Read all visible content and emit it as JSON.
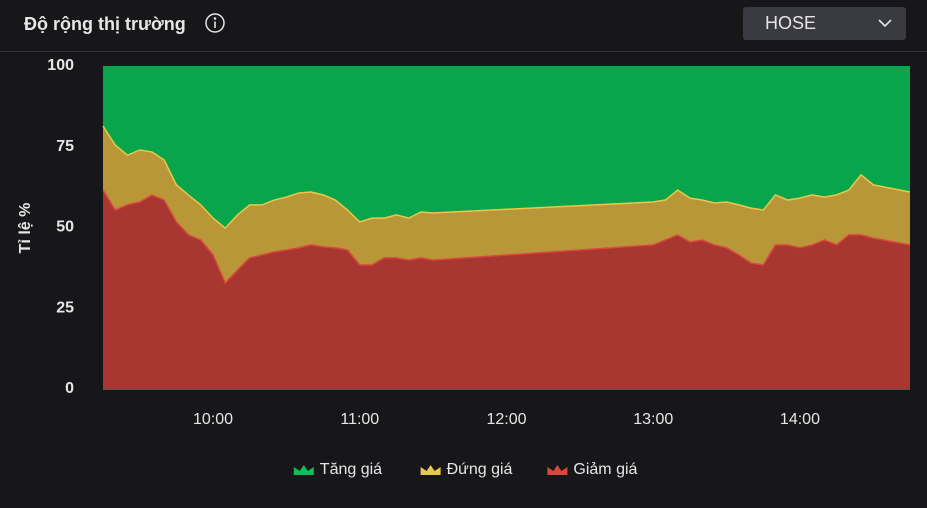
{
  "exchange_select": "HOSE",
  "chart_data": {
    "type": "stacked_area",
    "title": "Độ rộng thị trường",
    "y_label": "Tỉ lệ %",
    "x": [
      "09:15",
      "09:20",
      "09:25",
      "09:30",
      "09:35",
      "09:40",
      "09:45",
      "09:50",
      "09:55",
      "10:00",
      "10:05",
      "10:10",
      "10:15",
      "10:20",
      "10:25",
      "10:30",
      "10:35",
      "10:40",
      "10:45",
      "10:50",
      "10:55",
      "11:00",
      "11:05",
      "11:10",
      "11:15",
      "11:20",
      "11:25",
      "11:30",
      "13:00",
      "13:05",
      "13:10",
      "13:15",
      "13:20",
      "13:25",
      "13:30",
      "13:35",
      "13:40",
      "13:45",
      "13:50",
      "13:55",
      "14:00",
      "14:05",
      "14:10",
      "14:15",
      "14:20",
      "14:25",
      "14:30",
      "14:45"
    ],
    "series": [
      {
        "name": "Tăng giá",
        "color": "#08a54d",
        "line_color": "#0bbf5a",
        "values": [
          18.6,
          24.5,
          27.6,
          26.0,
          26.6,
          29.1,
          36.8,
          40.0,
          43.0,
          47.1,
          50.2,
          46.1,
          43.0,
          43.0,
          41.5,
          40.6,
          39.3,
          39.0,
          39.9,
          41.5,
          44.6,
          48.3,
          47.1,
          47.1,
          46.1,
          47.1,
          45.2,
          45.5,
          42.1,
          41.5,
          38.4,
          40.9,
          41.5,
          42.4,
          42.1,
          43.0,
          44.0,
          44.6,
          39.9,
          41.5,
          40.9,
          39.9,
          40.6,
          39.9,
          38.4,
          33.7,
          36.8,
          39.0
        ]
      },
      {
        "name": "Đứng giá",
        "color": "#b99638",
        "line_color": "#e8c94a",
        "values": [
          19.8,
          20.1,
          15.4,
          16.1,
          13.4,
          12.4,
          11.5,
          12.3,
          10.9,
          11.4,
          17.0,
          17.1,
          16.4,
          15.5,
          16.1,
          16.4,
          17.0,
          16.4,
          16.1,
          14.8,
          12.4,
          13.3,
          14.5,
          12.3,
          13.3,
          13.0,
          14.2,
          14.6,
          13.3,
          12.4,
          13.9,
          13.6,
          12.4,
          13.0,
          14.2,
          15.5,
          17.0,
          17.0,
          15.5,
          13.9,
          15.4,
          15.5,
          13.3,
          15.5,
          13.9,
          18.6,
          16.5,
          16.4
        ]
      },
      {
        "name": "Giảm giá",
        "color": "#a73730",
        "line_color": "#d9473e",
        "values": [
          61.6,
          55.4,
          57.0,
          57.9,
          60.0,
          58.5,
          51.7,
          47.7,
          46.1,
          41.5,
          32.8,
          36.8,
          40.6,
          41.5,
          42.4,
          43.0,
          43.7,
          44.6,
          44.0,
          43.7,
          43.0,
          38.4,
          38.4,
          40.6,
          40.6,
          39.9,
          40.6,
          39.9,
          44.6,
          46.1,
          47.7,
          45.5,
          46.1,
          44.6,
          43.7,
          41.5,
          39.0,
          38.4,
          44.6,
          44.6,
          43.7,
          44.6,
          46.1,
          44.6,
          47.7,
          47.7,
          46.7,
          44.6
        ]
      }
    ],
    "xlim": [
      "09:15",
      "14:45"
    ],
    "xticks": [
      "10:00",
      "11:00",
      "12:00",
      "13:00",
      "14:00"
    ],
    "ylim": [
      0,
      100
    ],
    "yticks": [
      0,
      25,
      50,
      75,
      100
    ],
    "legend": "bottom"
  }
}
